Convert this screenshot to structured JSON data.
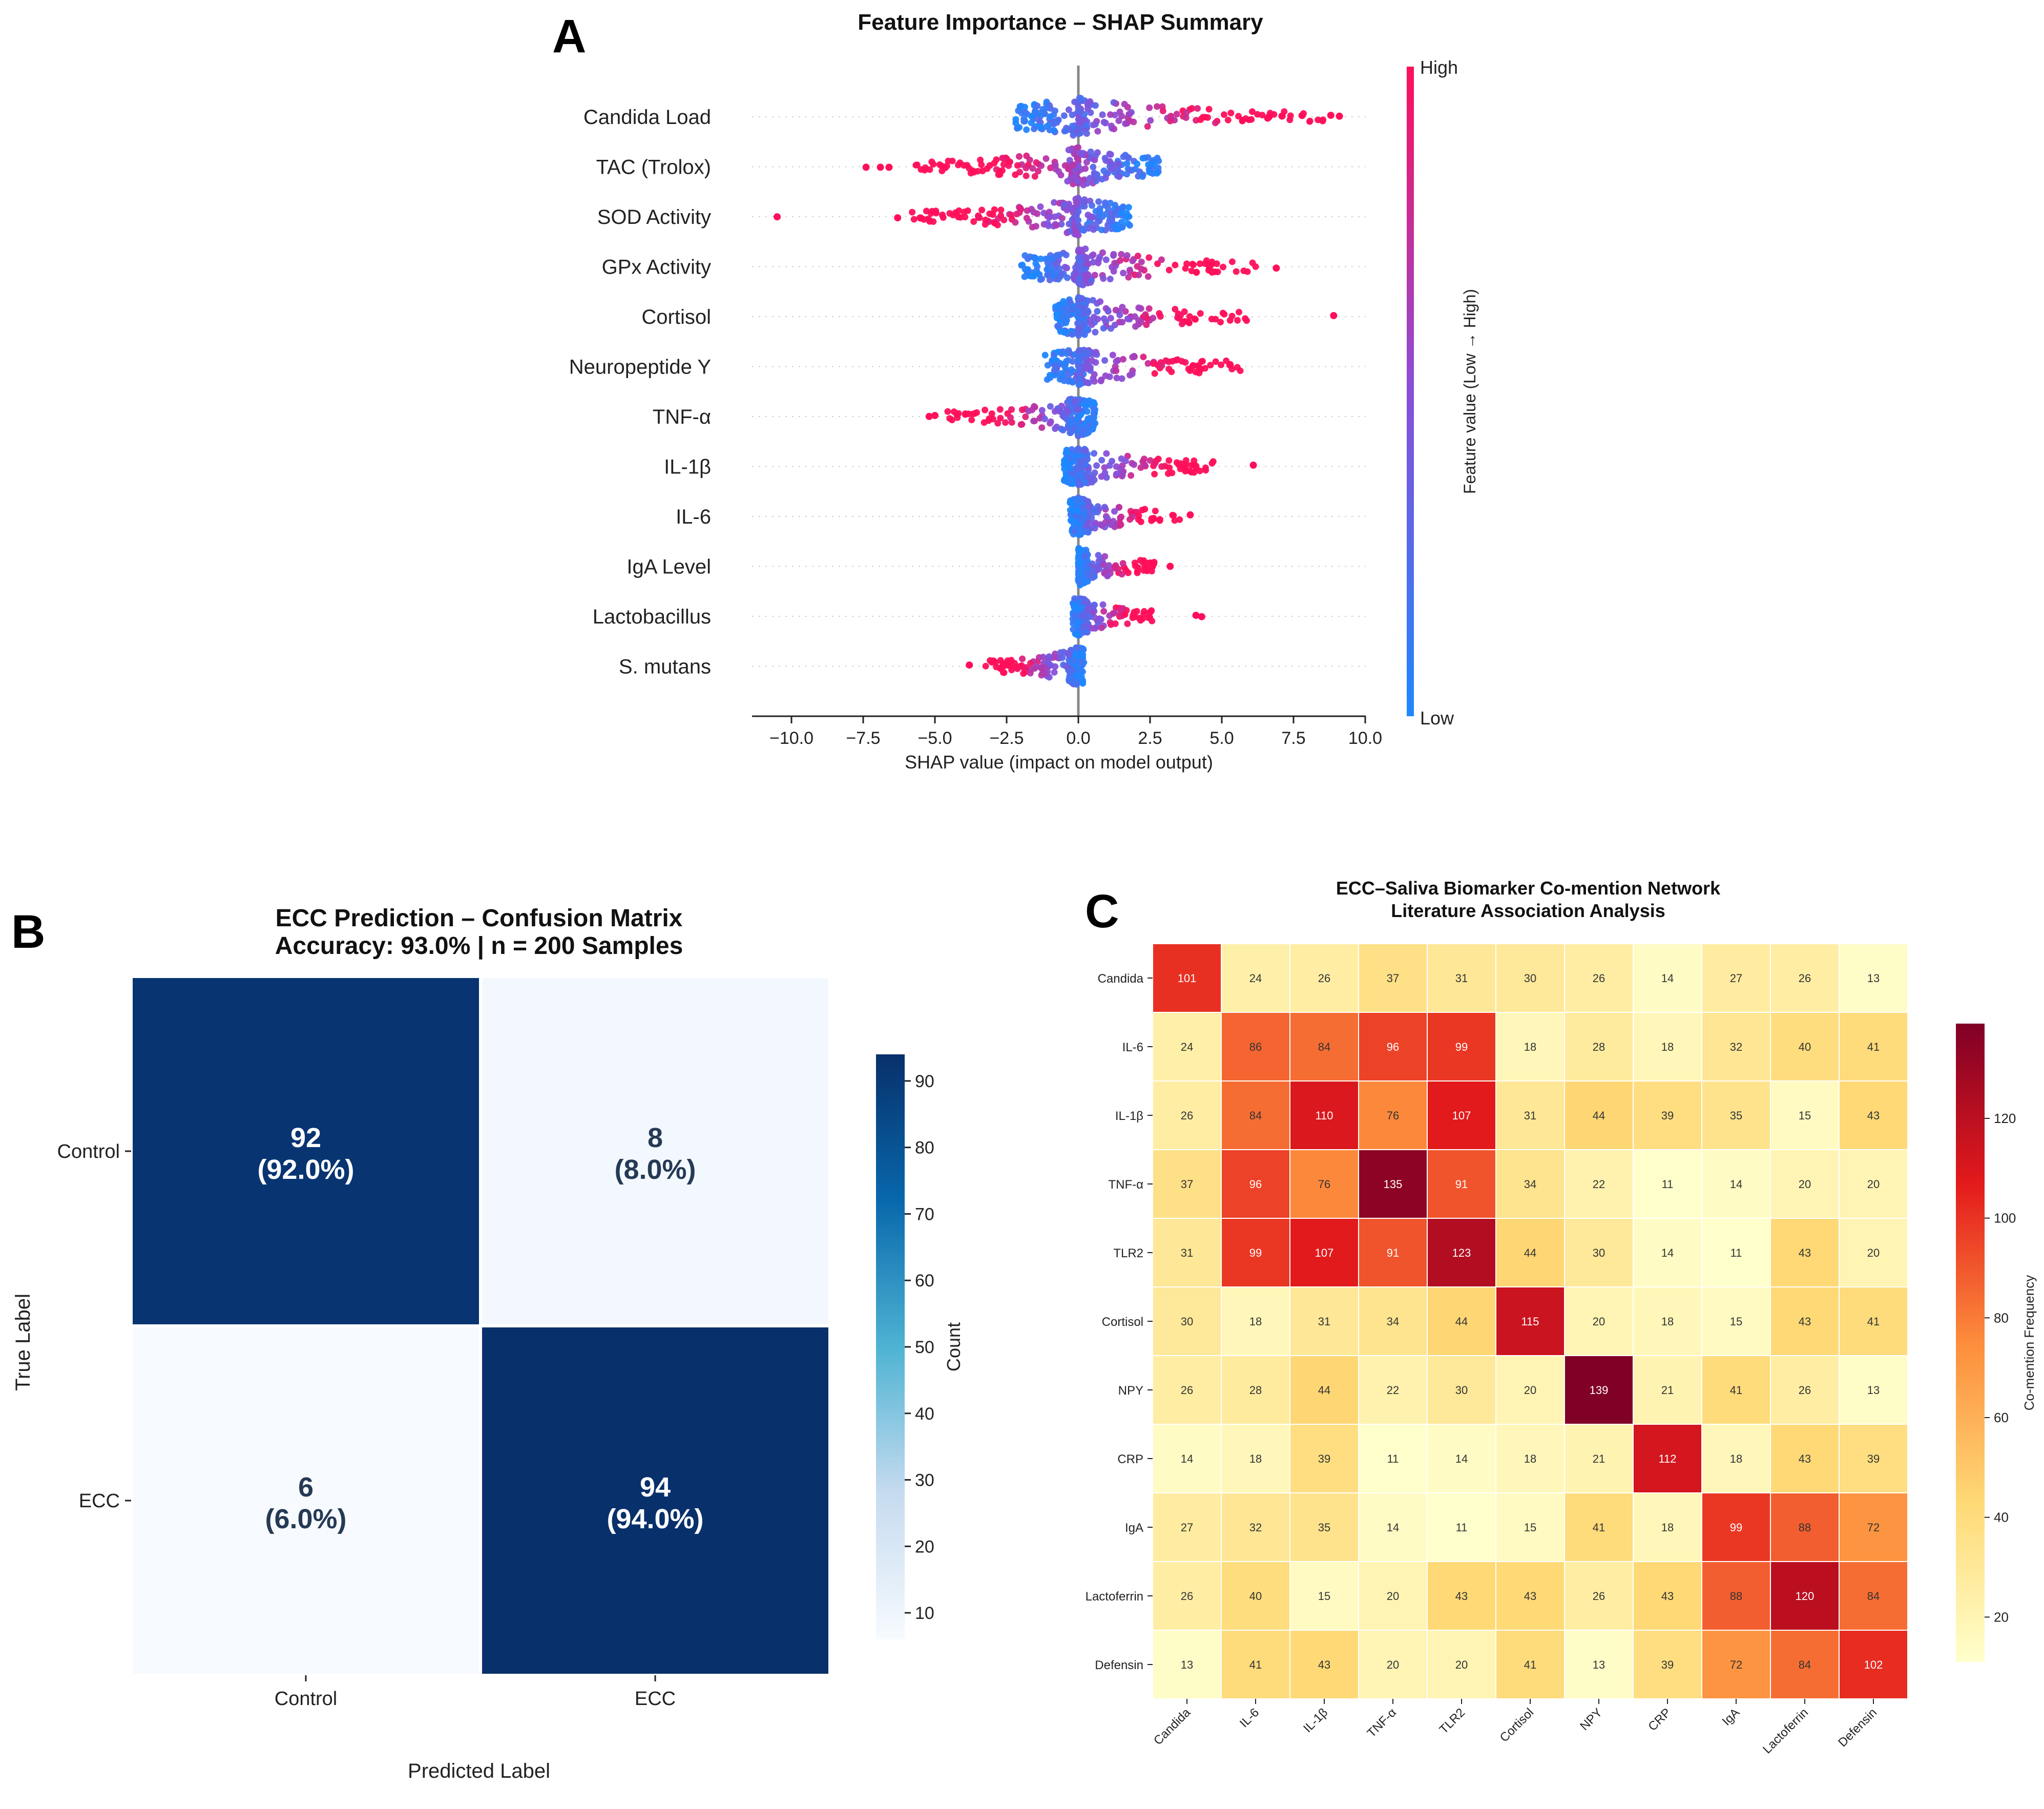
{
  "panel_letters": {
    "a": "A",
    "b": "B",
    "c": "C"
  },
  "chart_data": [
    {
      "type": "scatter",
      "variant": "shap-beeswarm",
      "title": "Feature Importance – SHAP Summary",
      "xlabel": "SHAP value (impact on model output)",
      "xlim": [
        -11.5,
        10
      ],
      "xticks": [
        -10,
        -7.5,
        -5,
        -2.5,
        0,
        2.5,
        5,
        7.5,
        10
      ],
      "xtick_labels": [
        "−10.0",
        "−7.5",
        "−5.0",
        "−2.5",
        "0.0",
        "2.5",
        "5.0",
        "7.5",
        "10.0"
      ],
      "colorbar": {
        "label": "Feature value (Low → High)",
        "high_label": "High",
        "low_label": "Low",
        "low_color": "#1e88ff",
        "high_color": "#ff0f5a"
      },
      "features": [
        {
          "name": "Candida Load",
          "min": -2.2,
          "max": 8.7,
          "direction": 1,
          "outliers": [
            6.6,
            7.1,
            7.8,
            8.8,
            9.1
          ]
        },
        {
          "name": "TAC (Trolox)",
          "min": -5.8,
          "max": 2.8,
          "direction": -1,
          "outliers": [
            -7.4,
            -6.9,
            -6.6
          ]
        },
        {
          "name": "SOD Activity",
          "min": -5.8,
          "max": 1.8,
          "direction": -1,
          "outliers": [
            -10.5,
            -6.3,
            -5.5
          ]
        },
        {
          "name": "GPx Activity",
          "min": -2.0,
          "max": 6.5,
          "direction": 1,
          "outliers": [
            6.9
          ]
        },
        {
          "name": "Cortisol",
          "min": -0.8,
          "max": 5.9,
          "direction": 1,
          "outliers": [
            8.9
          ]
        },
        {
          "name": "Neuropeptide Y",
          "min": -1.2,
          "max": 5.8,
          "direction": 1,
          "outliers": []
        },
        {
          "name": "TNF-α",
          "min": -4.6,
          "max": 0.6,
          "direction": -1,
          "outliers": [
            -5.2,
            -5.0
          ]
        },
        {
          "name": "IL-1β",
          "min": -0.5,
          "max": 4.8,
          "direction": 1,
          "outliers": [
            6.1
          ]
        },
        {
          "name": "IL-6",
          "min": -0.3,
          "max": 3.6,
          "direction": 1,
          "outliers": [
            3.9
          ]
        },
        {
          "name": "IgA Level",
          "min": 0.0,
          "max": 2.7,
          "direction": 1,
          "outliers": [
            3.2
          ]
        },
        {
          "name": "Lactobacillus",
          "min": -0.2,
          "max": 2.6,
          "direction": 1,
          "outliers": [
            4.1,
            4.3
          ]
        },
        {
          "name": "S. mutans",
          "min": -3.3,
          "max": 0.2,
          "direction": -1,
          "outliers": [
            -3.8
          ]
        }
      ]
    },
    {
      "type": "heatmap",
      "variant": "confusion-matrix",
      "title": "ECC Prediction – Confusion Matrix",
      "subtitle": "Accuracy: 93.0% | n = 200 Samples",
      "xlabel": "Predicted Label",
      "ylabel": "True Label",
      "labels": [
        "Control",
        "ECC"
      ],
      "values": [
        [
          92,
          8
        ],
        [
          6,
          94
        ]
      ],
      "cell_text": [
        [
          "92",
          "8"
        ],
        [
          "6",
          "94"
        ]
      ],
      "cell_pct": [
        [
          "(92.0%)",
          "(8.0%)"
        ],
        [
          "(6.0%)",
          "(94.0%)"
        ]
      ],
      "colorbar": {
        "label": "Count",
        "ticks": [
          10,
          20,
          30,
          40,
          50,
          60,
          70,
          80,
          90
        ],
        "range": [
          6,
          94
        ]
      }
    },
    {
      "type": "heatmap",
      "variant": "co-mention-matrix",
      "title": "ECC–Saliva Biomarker Co-mention Network",
      "subtitle": "Literature Association Analysis",
      "labels": [
        "Candida",
        "IL-6",
        "IL-1β",
        "TNF-α",
        "TLR2",
        "Cortisol",
        "NPY",
        "CRP",
        "IgA",
        "Lactoferrin",
        "Defensin"
      ],
      "values": [
        [
          101,
          24,
          26,
          37,
          31,
          30,
          26,
          14,
          27,
          26,
          13
        ],
        [
          24,
          86,
          84,
          96,
          99,
          18,
          28,
          18,
          32,
          40,
          41
        ],
        [
          26,
          84,
          110,
          76,
          107,
          31,
          44,
          39,
          35,
          15,
          43
        ],
        [
          37,
          96,
          76,
          135,
          91,
          34,
          22,
          11,
          14,
          20,
          20
        ],
        [
          31,
          99,
          107,
          91,
          123,
          44,
          30,
          14,
          11,
          43,
          20
        ],
        [
          30,
          18,
          31,
          34,
          44,
          115,
          20,
          18,
          15,
          43,
          41
        ],
        [
          26,
          28,
          44,
          22,
          30,
          20,
          139,
          21,
          41,
          26,
          13
        ],
        [
          14,
          18,
          39,
          11,
          14,
          18,
          21,
          112,
          18,
          43,
          39
        ],
        [
          27,
          32,
          35,
          14,
          11,
          15,
          41,
          18,
          99,
          88,
          72
        ],
        [
          26,
          40,
          15,
          20,
          43,
          43,
          26,
          43,
          88,
          120,
          84
        ],
        [
          13,
          41,
          43,
          20,
          20,
          41,
          13,
          39,
          72,
          84,
          102
        ]
      ],
      "colorbar": {
        "label": "Co-mention Frequency",
        "ticks": [
          20,
          40,
          60,
          80,
          100,
          120
        ],
        "range": [
          11,
          139
        ]
      }
    }
  ]
}
